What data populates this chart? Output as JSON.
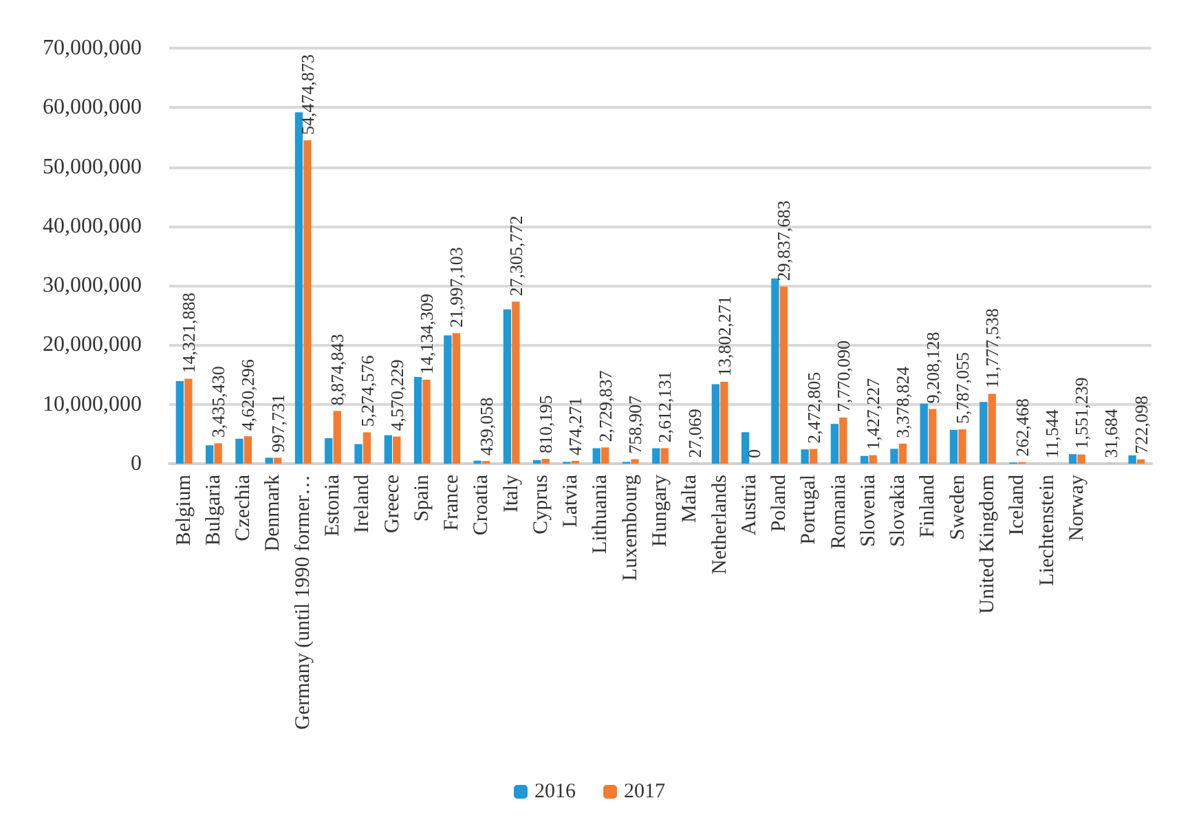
{
  "chart_data": {
    "type": "bar",
    "categories": [
      "Belgium",
      "Bulgaria",
      "Czechia",
      "Denmark",
      "Germany (until 1990 former…",
      "Estonia",
      "Ireland",
      "Greece",
      "Spain",
      "France",
      "Croatia",
      "Italy",
      "Cyprus",
      "Latvia",
      "Lithuania",
      "Luxembourg",
      "Hungary",
      "Malta",
      "Netherlands",
      "Austria",
      "Poland",
      "Portugal",
      "Romania",
      "Slovenia",
      "Slovakia",
      "Finland",
      "Sweden",
      "United Kingdom",
      "Iceland",
      "Liechtenstein",
      "Norway",
      null,
      null
    ],
    "series": [
      {
        "name": "2016",
        "color": "#1f9ad6",
        "values": [
          13900000,
          3100000,
          4200000,
          1000000,
          59200000,
          4300000,
          3300000,
          4800000,
          14600000,
          21600000,
          500000,
          26000000,
          600000,
          300000,
          2600000,
          300000,
          2600000,
          0,
          13400000,
          5300000,
          31200000,
          2400000,
          6700000,
          1300000,
          2500000,
          10100000,
          5700000,
          10400000,
          200000,
          0,
          1600000,
          0,
          1400000
        ]
      },
      {
        "name": "2017",
        "color": "#f47c30",
        "values": [
          14321888,
          3435430,
          4620296,
          997731,
          54474873,
          8874843,
          5274576,
          4570229,
          14134309,
          21997103,
          439058,
          27305772,
          810195,
          474271,
          2729837,
          758907,
          2612131,
          27069,
          13802271,
          0,
          29837683,
          2472805,
          7770090,
          1427227,
          3378824,
          9208128,
          5787055,
          11777538,
          262468,
          11544,
          1551239,
          31684,
          722098
        ],
        "value_labels": [
          "14,321,888",
          "3,435,430",
          "4,620,296",
          "997,731",
          "54,474,873",
          "8,874,843",
          "5,274,576",
          "4,570,229",
          "14,134,309",
          "21,997,103",
          "439,058",
          "27,305,772",
          "810,195",
          "474,271",
          "2,729,837",
          "758,907",
          "2,612,131",
          "27,069",
          "13,802,271",
          "0",
          "29,837,683",
          "2,472,805",
          "7,770,090",
          "1,427,227",
          "3,378,824",
          "9,208,128",
          "5,787,055",
          "11,777,538",
          "262,468",
          "11,544",
          "1,551,239",
          "31,684",
          "722,098"
        ]
      }
    ],
    "ylim": [
      0,
      70000000
    ],
    "yticks": [
      0,
      {
        "value": 10000000,
        "label": "10,000,000"
      },
      {
        "value": 20000000,
        "label": "20,000,000"
      },
      {
        "value": 30000000,
        "label": "30,000,000"
      },
      {
        "value": 40000000,
        "label": "40,000,000"
      },
      {
        "value": 50000000,
        "label": "50,000,000"
      },
      {
        "value": 60000000,
        "label": "60,000,000"
      },
      {
        "value": 70000000,
        "label": "70,000,000"
      }
    ],
    "grid": "y",
    "legend": "bottom"
  }
}
